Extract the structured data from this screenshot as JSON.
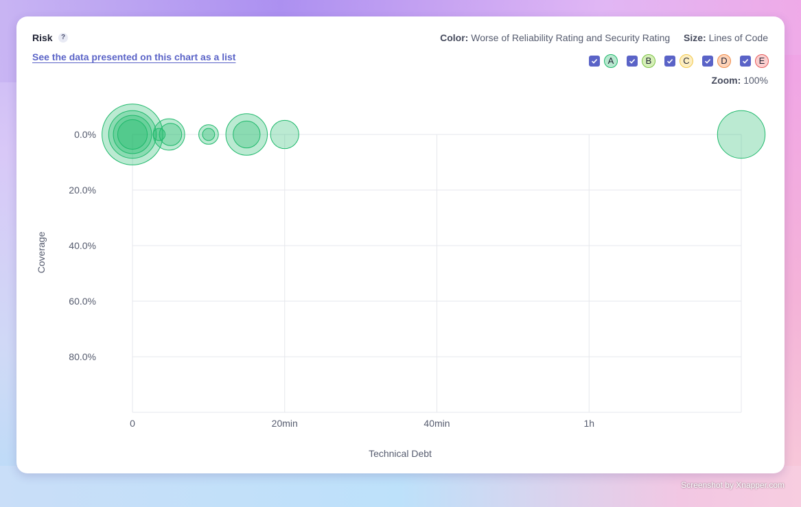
{
  "header": {
    "title": "Risk",
    "help_label": "?",
    "list_link": "See the data presented on this chart as a list",
    "color_label": "Color:",
    "color_value": "Worse of Reliability Rating and Security Rating",
    "size_label": "Size:",
    "size_value": "Lines of Code",
    "zoom_label": "Zoom:",
    "zoom_value": "100%"
  },
  "rating_filters": [
    {
      "label": "A",
      "checked": true,
      "fill": "#b7e8cf",
      "border": "#1db86a"
    },
    {
      "label": "B",
      "checked": true,
      "fill": "#d6f0b8",
      "border": "#7cc244"
    },
    {
      "label": "C",
      "checked": true,
      "fill": "#fdeec1",
      "border": "#f2c94c"
    },
    {
      "label": "D",
      "checked": true,
      "fill": "#fdd3b8",
      "border": "#f08c4a"
    },
    {
      "label": "E",
      "checked": true,
      "fill": "#fbcfcf",
      "border": "#e55b5b"
    }
  ],
  "chart_data": {
    "type": "scatter",
    "xlabel": "Technical Debt",
    "ylabel": "Coverage",
    "x_unit": "minutes",
    "y_unit": "percent",
    "xlim": [
      0,
      80
    ],
    "ylim": [
      0,
      100
    ],
    "x_ticks": [
      {
        "value": 0,
        "label": "0"
      },
      {
        "value": 20,
        "label": "20min"
      },
      {
        "value": 40,
        "label": "40min"
      },
      {
        "value": 60,
        "label": "1h"
      }
    ],
    "y_ticks": [
      {
        "value": 0,
        "label": "0.0%"
      },
      {
        "value": 20,
        "label": "20.0%"
      },
      {
        "value": 40,
        "label": "40.0%"
      },
      {
        "value": 60,
        "label": "60.0%"
      },
      {
        "value": 80,
        "label": "80.0%"
      }
    ],
    "grid": true,
    "bubble_color": "#1db86a",
    "points": [
      {
        "x": 0,
        "y": 0,
        "size": 100,
        "rating": "A"
      },
      {
        "x": 0,
        "y": 0,
        "size": 60,
        "rating": "A"
      },
      {
        "x": 0,
        "y": 0,
        "size": 38,
        "rating": "A"
      },
      {
        "x": 0,
        "y": 0,
        "size": 22,
        "rating": "A"
      },
      {
        "x": 3.5,
        "y": 0,
        "size": 3,
        "rating": "A"
      },
      {
        "x": 4.8,
        "y": 0,
        "size": 25,
        "rating": "A"
      },
      {
        "x": 5,
        "y": 0,
        "size": 12,
        "rating": "A"
      },
      {
        "x": 10,
        "y": 0,
        "size": 9,
        "rating": "A"
      },
      {
        "x": 10,
        "y": 0,
        "size": 3,
        "rating": "A"
      },
      {
        "x": 15,
        "y": 0,
        "size": 45,
        "rating": "A"
      },
      {
        "x": 15,
        "y": 0,
        "size": 18,
        "rating": "A"
      },
      {
        "x": 20,
        "y": 0,
        "size": 20,
        "rating": "A"
      },
      {
        "x": 80,
        "y": 0,
        "size": 60,
        "rating": "A"
      }
    ]
  },
  "watermark": "Screenshot by Xnapper.com"
}
